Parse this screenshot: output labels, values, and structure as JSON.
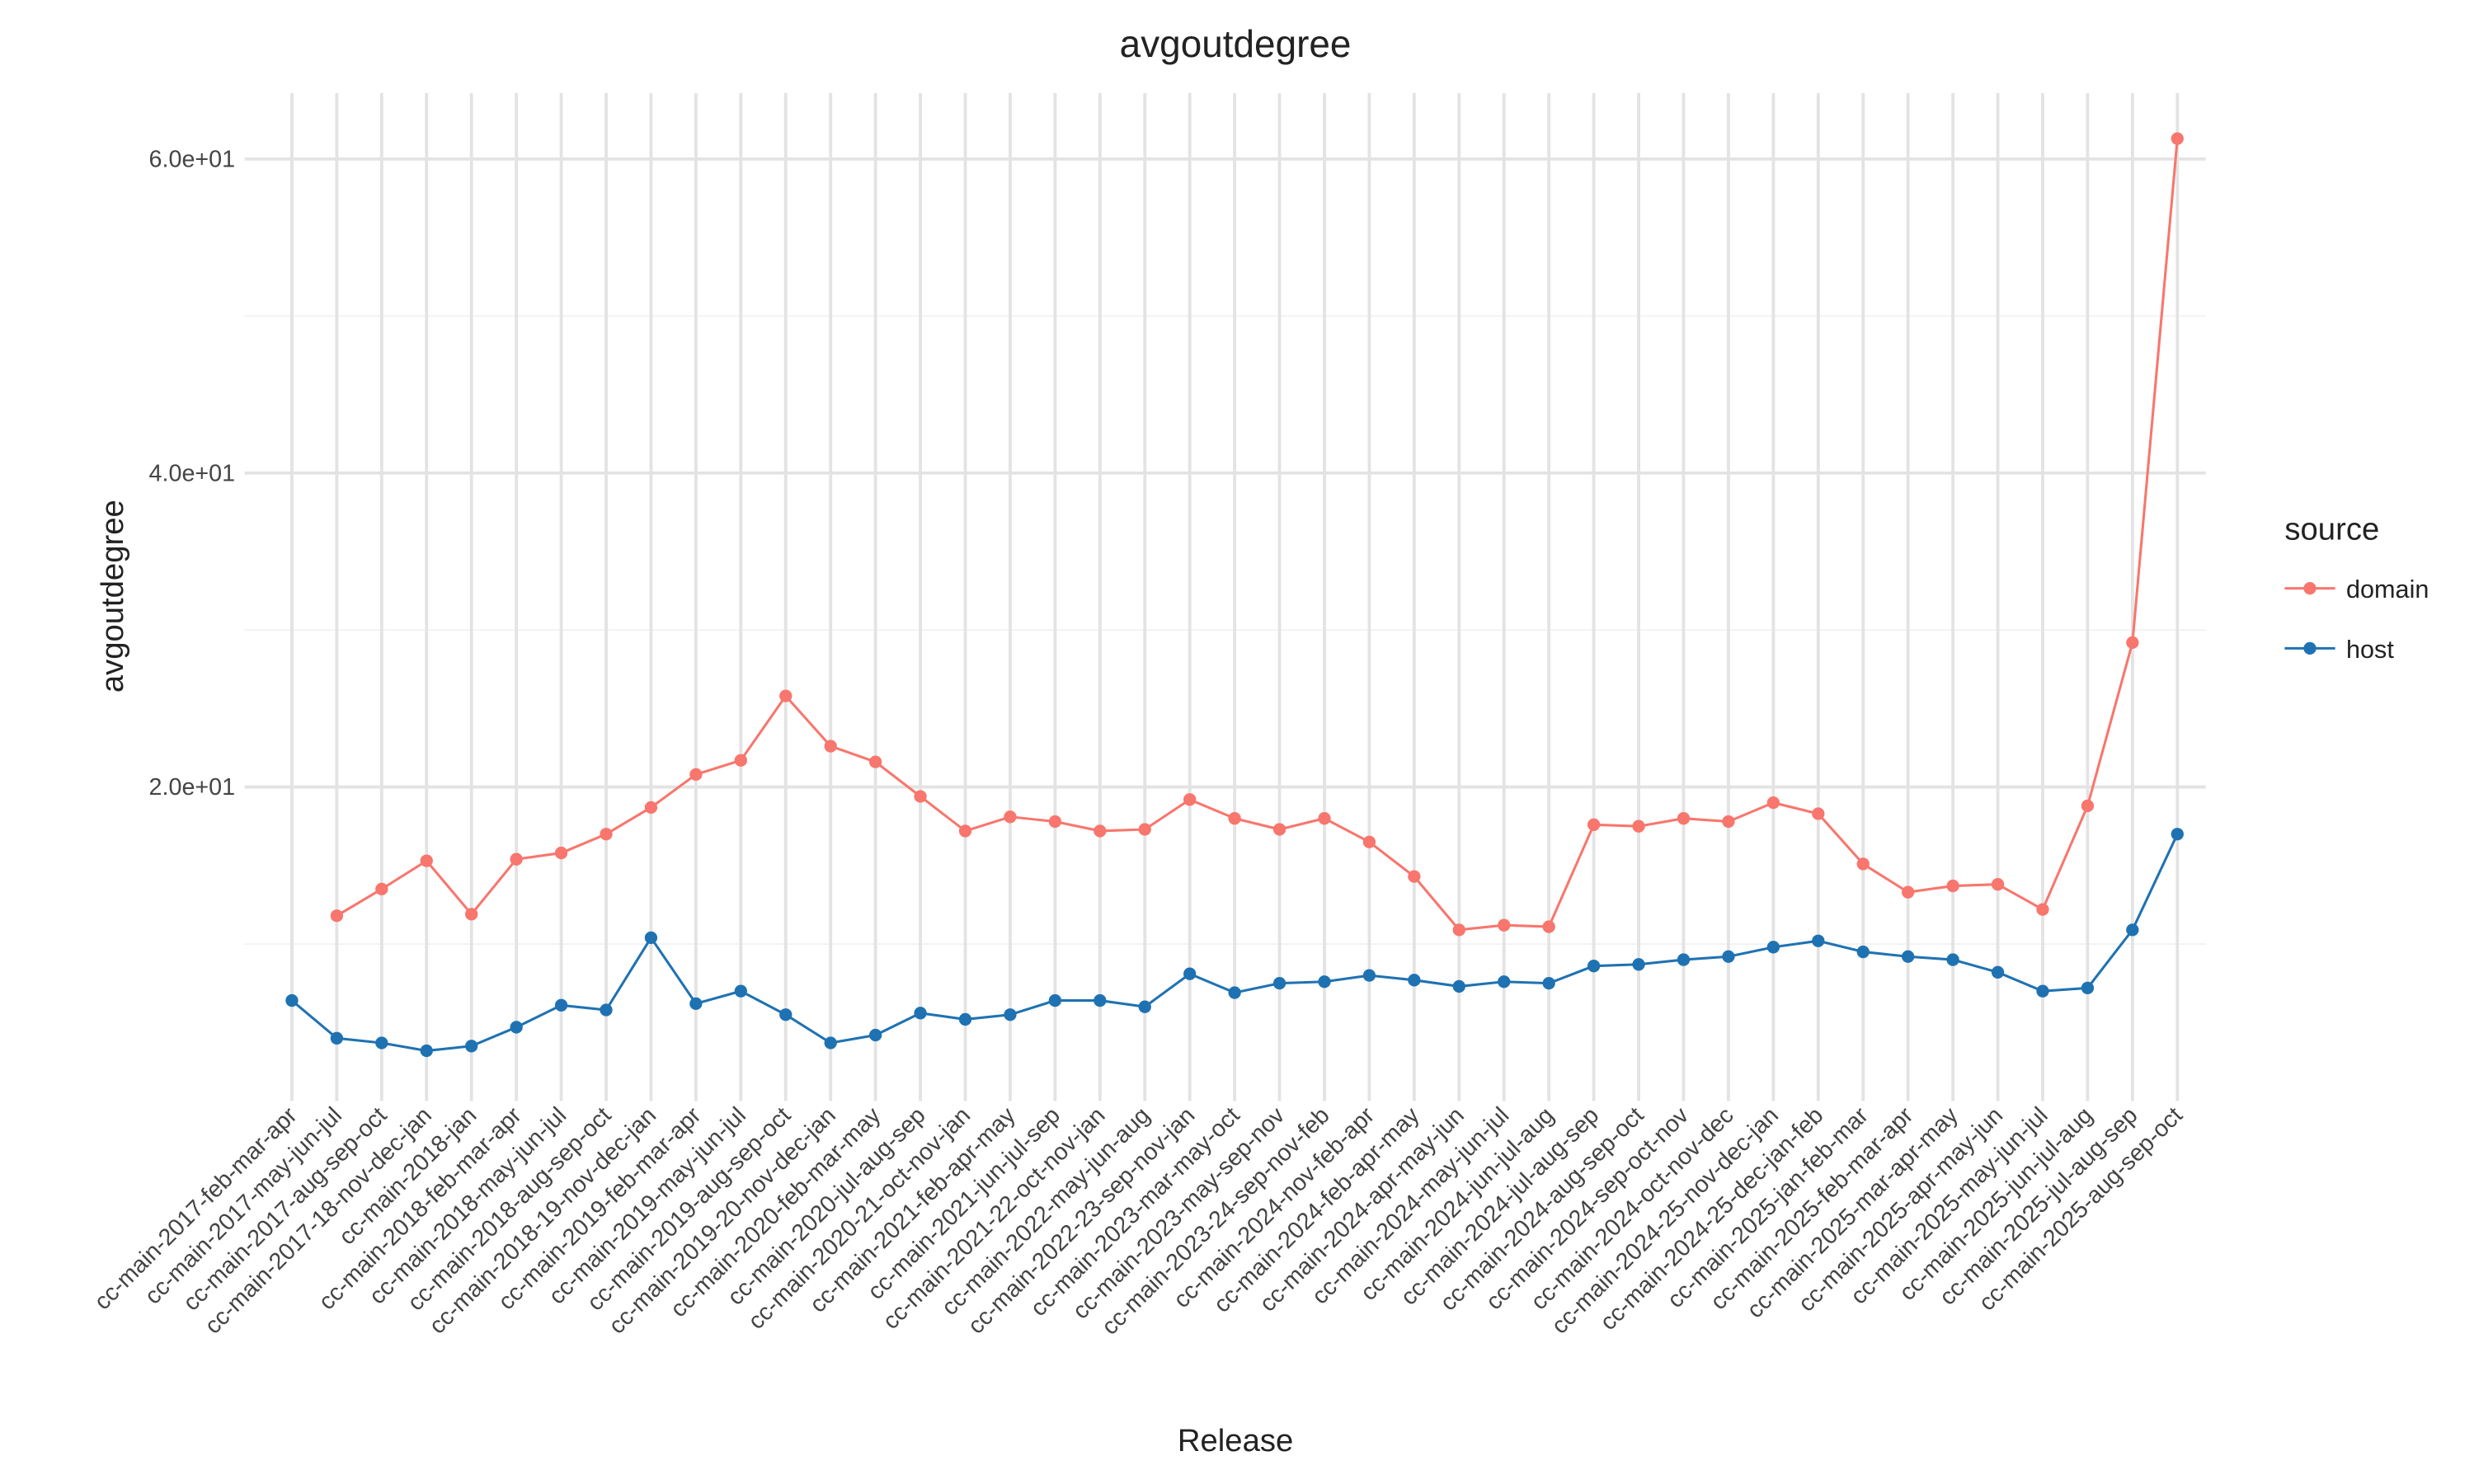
{
  "chart_data": {
    "type": "line",
    "title": "avgoutdegree",
    "x_label": "Release",
    "y_label": "avgoutdegree",
    "legend_title": "source",
    "categories": [
      "cc-main-2017-feb-mar-apr",
      "cc-main-2017-may-jun-jul",
      "cc-main-2017-aug-sep-oct",
      "cc-main-2017-18-nov-dec-jan",
      "cc-main-2018-jan",
      "cc-main-2018-feb-mar-apr",
      "cc-main-2018-may-jun-jul",
      "cc-main-2018-aug-sep-oct",
      "cc-main-2018-19-nov-dec-jan",
      "cc-main-2019-feb-mar-apr",
      "cc-main-2019-may-jun-jul",
      "cc-main-2019-aug-sep-oct",
      "cc-main-2019-20-nov-dec-jan",
      "cc-main-2020-feb-mar-may",
      "cc-main-2020-jul-aug-sep",
      "cc-main-2020-21-oct-nov-jan",
      "cc-main-2021-feb-apr-may",
      "cc-main-2021-jun-jul-sep",
      "cc-main-2021-22-oct-nov-jan",
      "cc-main-2022-may-jun-aug",
      "cc-main-2022-23-sep-nov-jan",
      "cc-main-2023-mar-may-oct",
      "cc-main-2023-may-sep-nov",
      "cc-main-2023-24-sep-nov-feb",
      "cc-main-2024-nov-feb-apr",
      "cc-main-2024-feb-apr-may",
      "cc-main-2024-apr-may-jun",
      "cc-main-2024-may-jun-jul",
      "cc-main-2024-jun-jul-aug",
      "cc-main-2024-jul-aug-sep",
      "cc-main-2024-aug-sep-oct",
      "cc-main-2024-sep-oct-nov",
      "cc-main-2024-oct-nov-dec",
      "cc-main-2024-25-nov-dec-jan",
      "cc-main-2024-25-dec-jan-feb",
      "cc-main-2025-jan-feb-mar",
      "cc-main-2025-feb-mar-apr",
      "cc-main-2025-mar-apr-may",
      "cc-main-2025-apr-may-jun",
      "cc-main-2025-may-jun-jul",
      "cc-main-2025-jun-jul-aug",
      "cc-main-2025-jul-aug-sep",
      "cc-main-2025-aug-sep-oct"
    ],
    "series": [
      {
        "name": "domain",
        "color": "#f8766d",
        "values": [
          null,
          11.8,
          13.5,
          15.3,
          11.9,
          15.4,
          15.8,
          17.0,
          18.7,
          20.8,
          21.7,
          25.8,
          22.6,
          21.6,
          19.4,
          17.2,
          18.1,
          17.8,
          17.2,
          17.3,
          19.2,
          18.0,
          17.3,
          18.0,
          16.5,
          14.3,
          10.9,
          11.2,
          11.1,
          17.6,
          17.5,
          18.0,
          17.8,
          19.0,
          18.3,
          15.1,
          13.3,
          13.7,
          13.8,
          12.2,
          18.8,
          29.2,
          61.3
        ]
      },
      {
        "name": "host",
        "color": "#1f72b2",
        "values": [
          6.4,
          4.0,
          3.7,
          3.2,
          3.5,
          4.7,
          6.1,
          5.8,
          10.4,
          6.2,
          7.0,
          5.5,
          3.7,
          4.2,
          5.6,
          5.2,
          5.5,
          6.4,
          6.4,
          6.0,
          8.1,
          6.9,
          7.5,
          7.6,
          8.0,
          7.7,
          7.3,
          7.6,
          7.5,
          8.6,
          8.7,
          9.0,
          9.2,
          9.8,
          10.2,
          9.5,
          9.2,
          9.0,
          8.2,
          7.0,
          7.2,
          10.9,
          17.0
        ]
      }
    ],
    "ylim": [
      0,
      64.2
    ],
    "yticks": [
      {
        "value": 20,
        "label": "2.0e+01"
      },
      {
        "value": 40,
        "label": "4.0e+01"
      },
      {
        "value": 60,
        "label": "6.0e+01"
      }
    ],
    "minor_yticks": [
      10,
      30,
      50
    ],
    "grid": true,
    "legend": "right"
  }
}
